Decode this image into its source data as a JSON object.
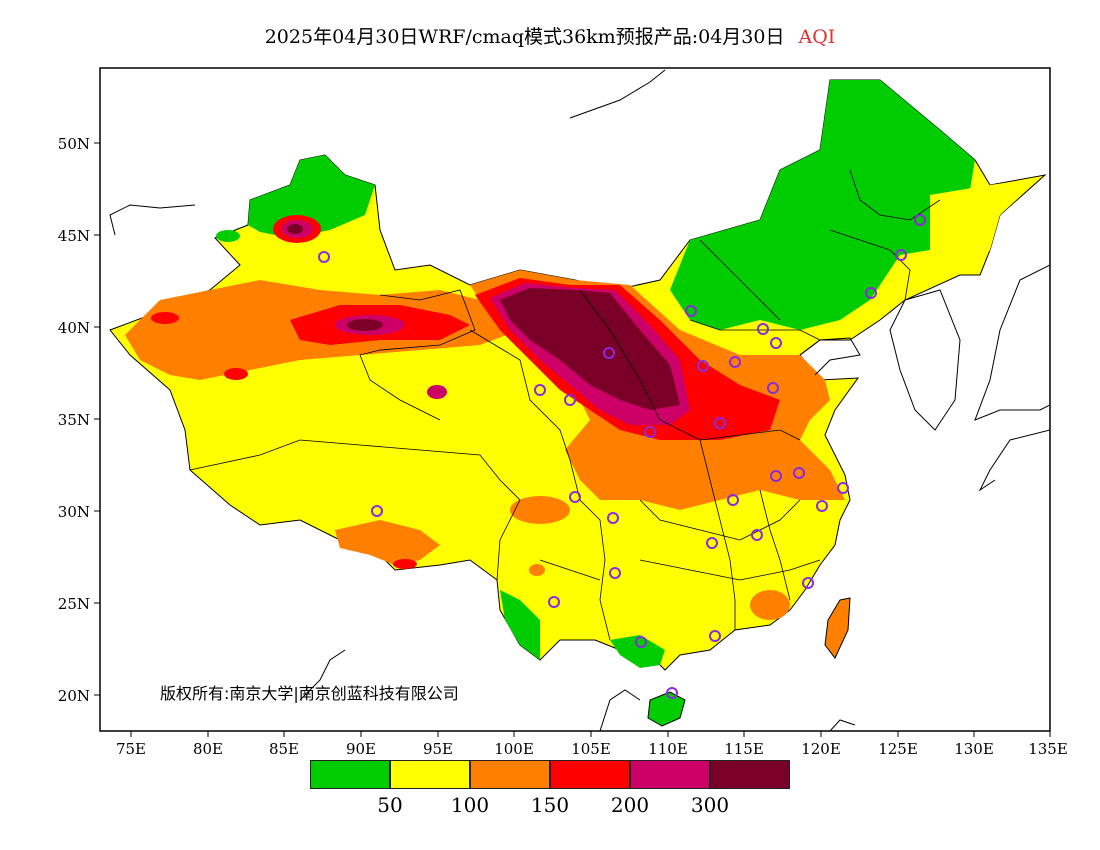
{
  "title": {
    "main": "2025年04月30日WRF/cmaq模式36km预报产品:04月30日",
    "variable": "AQI",
    "variable_color": "#e03030"
  },
  "axes": {
    "y_labels": [
      "50N",
      "45N",
      "40N",
      "35N",
      "30N",
      "25N",
      "20N"
    ],
    "x_labels": [
      "75E",
      "80E",
      "85E",
      "90E",
      "95E",
      "100E",
      "105E",
      "110E",
      "115E",
      "120E",
      "125E",
      "130E",
      "135E"
    ]
  },
  "copyright": "版权所有:南京大学|南京创蓝科技有限公司",
  "legend": {
    "colors": [
      "#00cc00",
      "#ffff00",
      "#ff8000",
      "#ff0000",
      "#cc0066",
      "#7a0028"
    ],
    "labels": [
      "50",
      "100",
      "150",
      "200",
      "300"
    ]
  },
  "map": {
    "land_outline_color": "#000000",
    "station_marker_color": "#8a2be2"
  }
}
